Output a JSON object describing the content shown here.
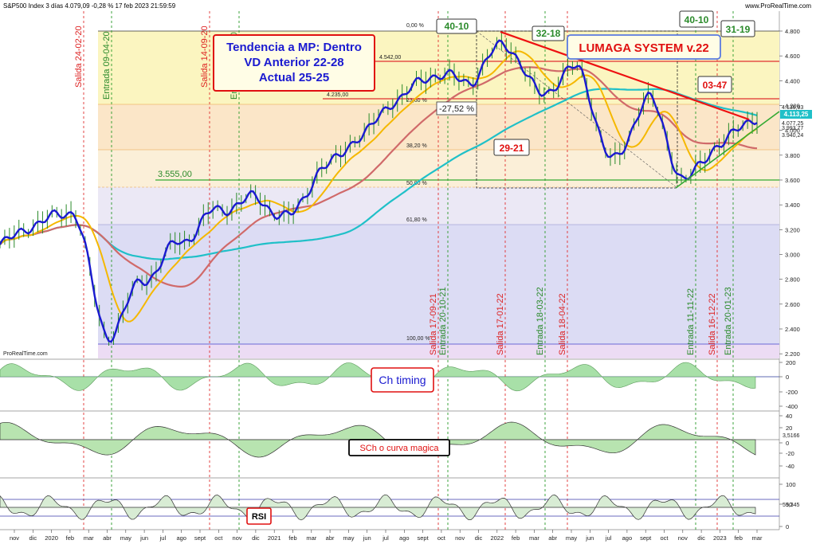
{
  "header": {
    "title": "S&P500 Index 3 días 4.079,09 -0,28 % 17 feb 2023 21:59:59",
    "watermark_top": "www.ProRealTime.com",
    "watermark_bottom": "ProRealTime.com"
  },
  "colors": {
    "price": "#1a1ad0",
    "ma_yellow": "#f5b800",
    "ma_red": "#d06a6a",
    "ma_cyan": "#20c0c8",
    "exit_line": "#e03030",
    "entry_line": "#2a9a2a",
    "trend_red": "#ee1111",
    "support_green": "#33aa33"
  },
  "annotations": {
    "trend_box": [
      "Tendencia a MP: Dentro",
      "VD Anterior 22-28",
      "Actual 25-25"
    ],
    "system": "LUMAGA SYSTEM v.22",
    "pct_drop": "-27,52 %",
    "level_3555": "3.555,00",
    "level_4542": "4.542,00",
    "level_4235": "4.235,00",
    "box_40_10_a": "40-10",
    "box_32_18": "32-18",
    "box_40_10_b": "40-10",
    "box_31_19": "31-19",
    "box_29_21": "29-21",
    "box_03_47": "03-47",
    "ch_timing": "Ch timing",
    "sch": "SCh o curva magica",
    "rsi": "RSI"
  },
  "fib_labels": [
    "0,00 %",
    "23,60 %",
    "38,20 %",
    "50,00 %",
    "61,80 %",
    "100,00 %"
  ],
  "signals": [
    {
      "label": "Salida 24-02-20",
      "type": "exit"
    },
    {
      "label": "Entrada 09-04-20",
      "type": "entry"
    },
    {
      "label": "Salida 14-09-20",
      "type": "exit"
    },
    {
      "label": "Entrada 03-11-20",
      "type": "entry"
    },
    {
      "label": "Salida 17-09-21",
      "type": "exit"
    },
    {
      "label": "Entrada 20-10-21",
      "type": "entry"
    },
    {
      "label": "Salida 17-01-22",
      "type": "exit"
    },
    {
      "label": "Entrada 18-03-22",
      "type": "entry"
    },
    {
      "label": "Salida 18-04-22",
      "type": "exit"
    },
    {
      "label": "Entrada 11-11-22",
      "type": "entry"
    },
    {
      "label": "Salida 16-12-22",
      "type": "exit"
    },
    {
      "label": "Entrada 20-01-23",
      "type": "entry"
    }
  ],
  "price_axis": {
    "ticks": [
      "4.800",
      "4.600",
      "4.400",
      "4.200",
      "4.000",
      "3.800",
      "3.600",
      "3.400",
      "3.200",
      "3.000",
      "2.800",
      "2.600",
      "2.400",
      "2.200"
    ],
    "last_price": "4.113,25",
    "labels_right": [
      "4.136,93",
      "4.077,25",
      "3.993,77",
      "3.940,24"
    ]
  },
  "ch_axis": [
    "200",
    "0",
    "-200",
    "-400"
  ],
  "sch_axis": [
    "40",
    "20",
    "0",
    "-20",
    "-40"
  ],
  "sch_value": "3,5166",
  "rsi_axis": [
    "100",
    "50",
    "0"
  ],
  "rsi_value": "59,345",
  "months": [
    "nov",
    "dic",
    "2020",
    "feb",
    "mar",
    "abr",
    "may",
    "jun",
    "jul",
    "ago",
    "sept",
    "oct",
    "nov",
    "dic",
    "2021",
    "feb",
    "mar",
    "abr",
    "may",
    "jun",
    "jul",
    "ago",
    "sept",
    "oct",
    "nov",
    "dic",
    "2022",
    "feb",
    "mar",
    "abr",
    "may",
    "jun",
    "jul",
    "ago",
    "sept",
    "oct",
    "nov",
    "dic",
    "2023",
    "feb",
    "mar"
  ],
  "chart_data": {
    "type": "line",
    "title": "S&P500 Index 3 días",
    "x": [
      "nov 2019",
      "ene 2020",
      "feb 2020",
      "mar 2020",
      "abr 2020",
      "jun 2020",
      "ago 2020",
      "sept 2020",
      "oct 2020",
      "dic 2020",
      "mar 2021",
      "jun 2021",
      "ago 2021",
      "oct 2021",
      "ene 2022",
      "mar 2022",
      "abr 2022",
      "jun 2022",
      "ago 2022",
      "oct 2022",
      "dic 2022",
      "feb 2023"
    ],
    "series": [
      {
        "name": "S&P500",
        "values": [
          3080,
          3250,
          3350,
          2350,
          2800,
          3100,
          3350,
          3450,
          3300,
          3700,
          3950,
          4250,
          4450,
          4400,
          4700,
          4300,
          4500,
          3750,
          4250,
          3600,
          3900,
          4113
        ]
      }
    ],
    "ylim": [
      2150,
      4850
    ],
    "grid": false
  }
}
